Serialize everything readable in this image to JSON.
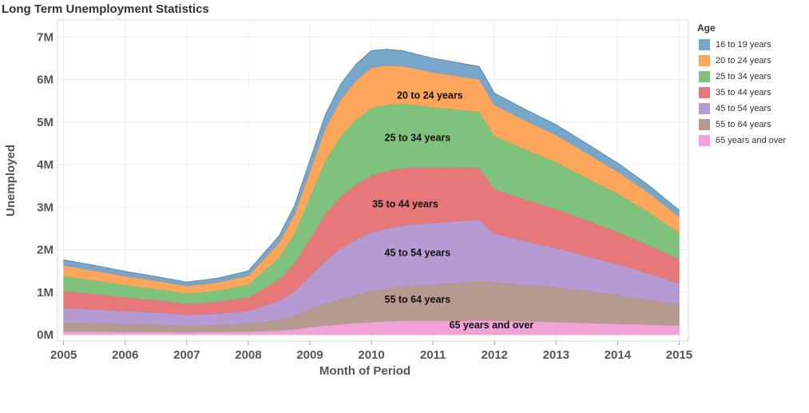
{
  "title": "Long Term Unemployment Statistics",
  "chart_data": {
    "type": "area",
    "stacked": true,
    "title": "Long Term Unemployment Statistics",
    "xlabel": "Month of Period",
    "ylabel": "Unemployed",
    "xlim": [
      2004.9,
      2015.15
    ],
    "ylim": [
      -0.15,
      7.4
    ],
    "x_ticks": [
      "2005",
      "2006",
      "2007",
      "2008",
      "2009",
      "2010",
      "2011",
      "2012",
      "2013",
      "2014",
      "2015"
    ],
    "y_ticks": [
      "0M",
      "1M",
      "2M",
      "3M",
      "4M",
      "5M",
      "6M",
      "7M"
    ],
    "grid": true,
    "legend_placement": "right",
    "legend_title": "Age",
    "x": [
      2005,
      2005.5,
      2006,
      2006.5,
      2007,
      2007.5,
      2008,
      2008.5,
      2008.75,
      2009,
      2009.25,
      2009.5,
      2009.75,
      2010,
      2010.25,
      2010.5,
      2010.75,
      2011,
      2011.25,
      2011.5,
      2011.75,
      2012,
      2012.5,
      2013,
      2013.5,
      2014,
      2014.5,
      2015
    ],
    "series": [
      {
        "name": "65 years and over",
        "label": "65 years and over",
        "color": "#f1a2d6",
        "values": [
          0.08,
          0.08,
          0.07,
          0.07,
          0.06,
          0.07,
          0.08,
          0.1,
          0.13,
          0.18,
          0.22,
          0.25,
          0.28,
          0.3,
          0.32,
          0.33,
          0.33,
          0.33,
          0.33,
          0.33,
          0.34,
          0.33,
          0.32,
          0.3,
          0.28,
          0.26,
          0.24,
          0.22
        ]
      },
      {
        "name": "55 to 64 years",
        "label": "55 to 64 years",
        "color": "#b59a8f",
        "values": [
          0.2,
          0.19,
          0.18,
          0.17,
          0.15,
          0.16,
          0.18,
          0.25,
          0.32,
          0.42,
          0.52,
          0.6,
          0.66,
          0.72,
          0.76,
          0.8,
          0.83,
          0.85,
          0.88,
          0.9,
          0.93,
          0.9,
          0.86,
          0.82,
          0.75,
          0.68,
          0.58,
          0.48
        ]
      },
      {
        "name": "45 to 54 years",
        "label": "45 to 54 years",
        "color": "#b69ad2",
        "values": [
          0.35,
          0.33,
          0.31,
          0.29,
          0.26,
          0.27,
          0.3,
          0.45,
          0.58,
          0.78,
          1.0,
          1.18,
          1.3,
          1.38,
          1.42,
          1.44,
          1.45,
          1.45,
          1.45,
          1.45,
          1.44,
          1.15,
          1.02,
          0.92,
          0.82,
          0.72,
          0.62,
          0.52
        ]
      },
      {
        "name": "35 to 44 years",
        "label": "35 to 44 years",
        "color": "#e6787a",
        "values": [
          0.4,
          0.36,
          0.32,
          0.29,
          0.26,
          0.28,
          0.32,
          0.5,
          0.65,
          0.88,
          1.1,
          1.22,
          1.3,
          1.35,
          1.35,
          1.35,
          1.33,
          1.3,
          1.28,
          1.25,
          1.22,
          1.05,
          0.98,
          0.92,
          0.84,
          0.76,
          0.67,
          0.56
        ]
      },
      {
        "name": "25 to 34 years",
        "label": "25 to 34 years",
        "color": "#7fc27d",
        "values": [
          0.35,
          0.32,
          0.29,
          0.26,
          0.24,
          0.26,
          0.3,
          0.52,
          0.7,
          0.98,
          1.25,
          1.42,
          1.52,
          1.58,
          1.56,
          1.52,
          1.46,
          1.42,
          1.38,
          1.35,
          1.32,
          1.25,
          1.18,
          1.1,
          1.0,
          0.9,
          0.78,
          0.62
        ]
      },
      {
        "name": "20 to 24 years",
        "label": "20 to 24 years",
        "color": "#fca65b",
        "values": [
          0.25,
          0.23,
          0.21,
          0.19,
          0.18,
          0.19,
          0.21,
          0.35,
          0.45,
          0.6,
          0.76,
          0.86,
          0.92,
          0.95,
          0.92,
          0.88,
          0.85,
          0.82,
          0.8,
          0.78,
          0.76,
          0.72,
          0.68,
          0.64,
          0.58,
          0.52,
          0.45,
          0.38
        ]
      },
      {
        "name": "16 to 19 years",
        "label": "",
        "color": "#76a6ca",
        "values": [
          0.13,
          0.12,
          0.11,
          0.1,
          0.09,
          0.1,
          0.11,
          0.16,
          0.2,
          0.26,
          0.32,
          0.36,
          0.38,
          0.4,
          0.38,
          0.36,
          0.34,
          0.33,
          0.32,
          0.31,
          0.3,
          0.28,
          0.26,
          0.24,
          0.22,
          0.2,
          0.18,
          0.15
        ]
      }
    ],
    "annotations": [
      {
        "text": "20 to 24 years",
        "x": 2010.95,
        "y": 5.55
      },
      {
        "text": "25 to 34 years",
        "x": 2010.75,
        "y": 4.55
      },
      {
        "text": "35 to 44 years",
        "x": 2010.55,
        "y": 3.0
      },
      {
        "text": "45 to 54 years",
        "x": 2010.75,
        "y": 1.85
      },
      {
        "text": "55 to 64 years",
        "x": 2010.75,
        "y": 0.75
      },
      {
        "text": "65 years and over",
        "x": 2011.95,
        "y": 0.15
      }
    ]
  }
}
